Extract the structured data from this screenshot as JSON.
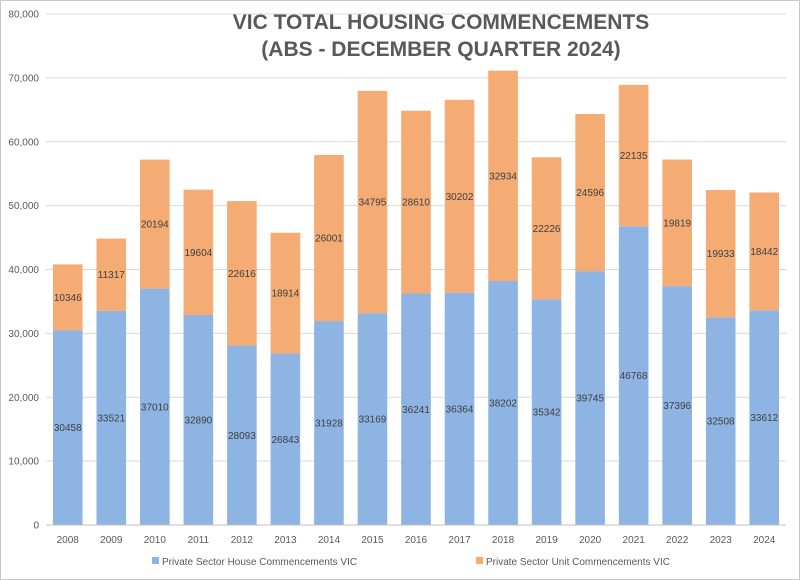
{
  "chart_data": {
    "type": "bar",
    "stacked": true,
    "title_lines": [
      "VIC TOTAL HOUSING COMMENCEMENTS",
      "(ABS - DECEMBER QUARTER 2024)"
    ],
    "categories": [
      "2008",
      "2009",
      "2010",
      "2011",
      "2012",
      "2013",
      "2014",
      "2015",
      "2016",
      "2017",
      "2018",
      "2019",
      "2020",
      "2021",
      "2022",
      "2023",
      "2024"
    ],
    "series": [
      {
        "name": "Private Sector House Commencements VIC",
        "color": "#8db4e2",
        "values": [
          30458,
          33521,
          37010,
          32890,
          28093,
          26843,
          31928,
          33169,
          36241,
          36364,
          38202,
          35342,
          39745,
          46768,
          37396,
          32508,
          33612
        ]
      },
      {
        "name": "Private Sector Unit Commencements VIC",
        "color": "#f4ab74",
        "values": [
          10346,
          11317,
          20194,
          19604,
          22616,
          18914,
          26001,
          34795,
          28610,
          30202,
          32934,
          22226,
          24596,
          22135,
          19819,
          19933,
          18442
        ]
      }
    ],
    "ylim": [
      0,
      80000
    ],
    "yticks": [
      "0",
      "10,000",
      "20,000",
      "30,000",
      "40,000",
      "50,000",
      "60,000",
      "70,000",
      "80,000"
    ],
    "ytick_values": [
      0,
      10000,
      20000,
      30000,
      40000,
      50000,
      60000,
      70000,
      80000
    ],
    "grid": true,
    "legend_position": "bottom",
    "xlabel": "",
    "ylabel": ""
  }
}
